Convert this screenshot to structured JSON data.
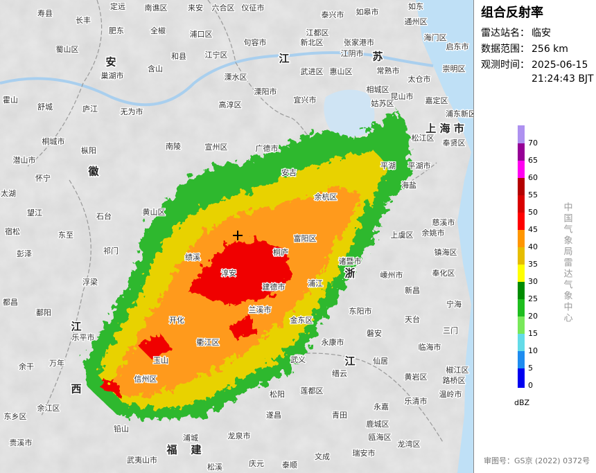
{
  "panel": {
    "title": "组合反射率",
    "station_label": "雷达站名：",
    "station": "临安",
    "range_label": "数据范围：",
    "range": "256 km",
    "time_label": "观测时间：",
    "date": "2025-06-15",
    "time": "21:24:43 BJT"
  },
  "legend": {
    "unit": "dBZ",
    "levels": [
      {
        "value": 0,
        "color": "#0000f0"
      },
      {
        "value": 5,
        "color": "#1e8cf0"
      },
      {
        "value": 10,
        "color": "#63dbe8"
      },
      {
        "value": 15,
        "color": "#78e85a"
      },
      {
        "value": 20,
        "color": "#1ebe1e"
      },
      {
        "value": 25,
        "color": "#008c00"
      },
      {
        "value": 30,
        "color": "#ffff00"
      },
      {
        "value": 35,
        "color": "#e6bd00"
      },
      {
        "value": 40,
        "color": "#ff9600"
      },
      {
        "value": 45,
        "color": "#ff0000"
      },
      {
        "value": 50,
        "color": "#d90000"
      },
      {
        "value": 55,
        "color": "#b40000"
      },
      {
        "value": 60,
        "color": "#ff00f0"
      },
      {
        "value": 65,
        "color": "#960096"
      },
      {
        "value": 70,
        "color": "#ae91f0"
      }
    ]
  },
  "credit": "中国气象局雷达气象中心",
  "approval": "审图号：GS京 (2022) 0372号",
  "region_labels": [
    "安",
    "徽",
    "江",
    "苏",
    "浙",
    "江",
    "江",
    "西",
    "福",
    "建",
    "上 海 市"
  ],
  "map_labels": [
    "寿县",
    "长丰",
    "定远",
    "南谯区",
    "来安",
    "六合区",
    "仪征市",
    "泰兴市",
    "如皋市",
    "如东",
    "肥东",
    "全椒",
    "浦口区",
    "江都区",
    "通州区",
    "海门区",
    "启东市",
    "蜀山区",
    "巢湖市",
    "含山",
    "和县",
    "江宁区",
    "句容市",
    "张家港市",
    "江阴市",
    "常熟市",
    "太仓市",
    "新北区",
    "武进区",
    "惠山区",
    "溧水区",
    "溧阳市",
    "宜兴市",
    "相城区",
    "昆山市",
    "崇明区",
    "庐江",
    "无为市",
    "高淳区",
    "舒城",
    "霍山",
    "姑苏区",
    "嘉定区",
    "浦东新区",
    "松江区",
    "奉贤区",
    "平湖市",
    "桐城市",
    "枞阳",
    "南陵",
    "宣州区",
    "广德市",
    "安吉",
    "潜山市",
    "怀宁",
    "太湖",
    "望江",
    "东至",
    "宿松",
    "彭泽",
    "黄山区",
    "石台",
    "祁门",
    "浮梁",
    "都昌",
    "鄱阳",
    "乐平市",
    "余干",
    "万年",
    "开化",
    "兰溪市",
    "金东区",
    "东阳市",
    "磐安",
    "永康市",
    "仙居",
    "临海市",
    "天台",
    "三门",
    "新昌",
    "嵊州市",
    "上虞区",
    "余姚市",
    "慈溪市",
    "镇海区",
    "奉化区",
    "宁海",
    "黄岩区",
    "路桥区",
    "温岭市",
    "椒江区",
    "缙云",
    "青田",
    "永嘉",
    "乐清市",
    "瑞安市",
    "鹿城区",
    "瓯海区",
    "龙湾区",
    "莲都区",
    "松阳",
    "龙泉市",
    "庆元",
    "文成",
    "泰顺",
    "武义",
    "玉山",
    "信州区",
    "铅山",
    "余江区",
    "东乡区",
    "浦城",
    "武夷山市",
    "松溪",
    "桐庐",
    "建德市",
    "淳安",
    "富阳区",
    "余杭区",
    "诸暨市",
    "浦江",
    "绩溪",
    "衢江区",
    "遂昌",
    "贵溪市",
    "平湖",
    "海盐"
  ]
}
